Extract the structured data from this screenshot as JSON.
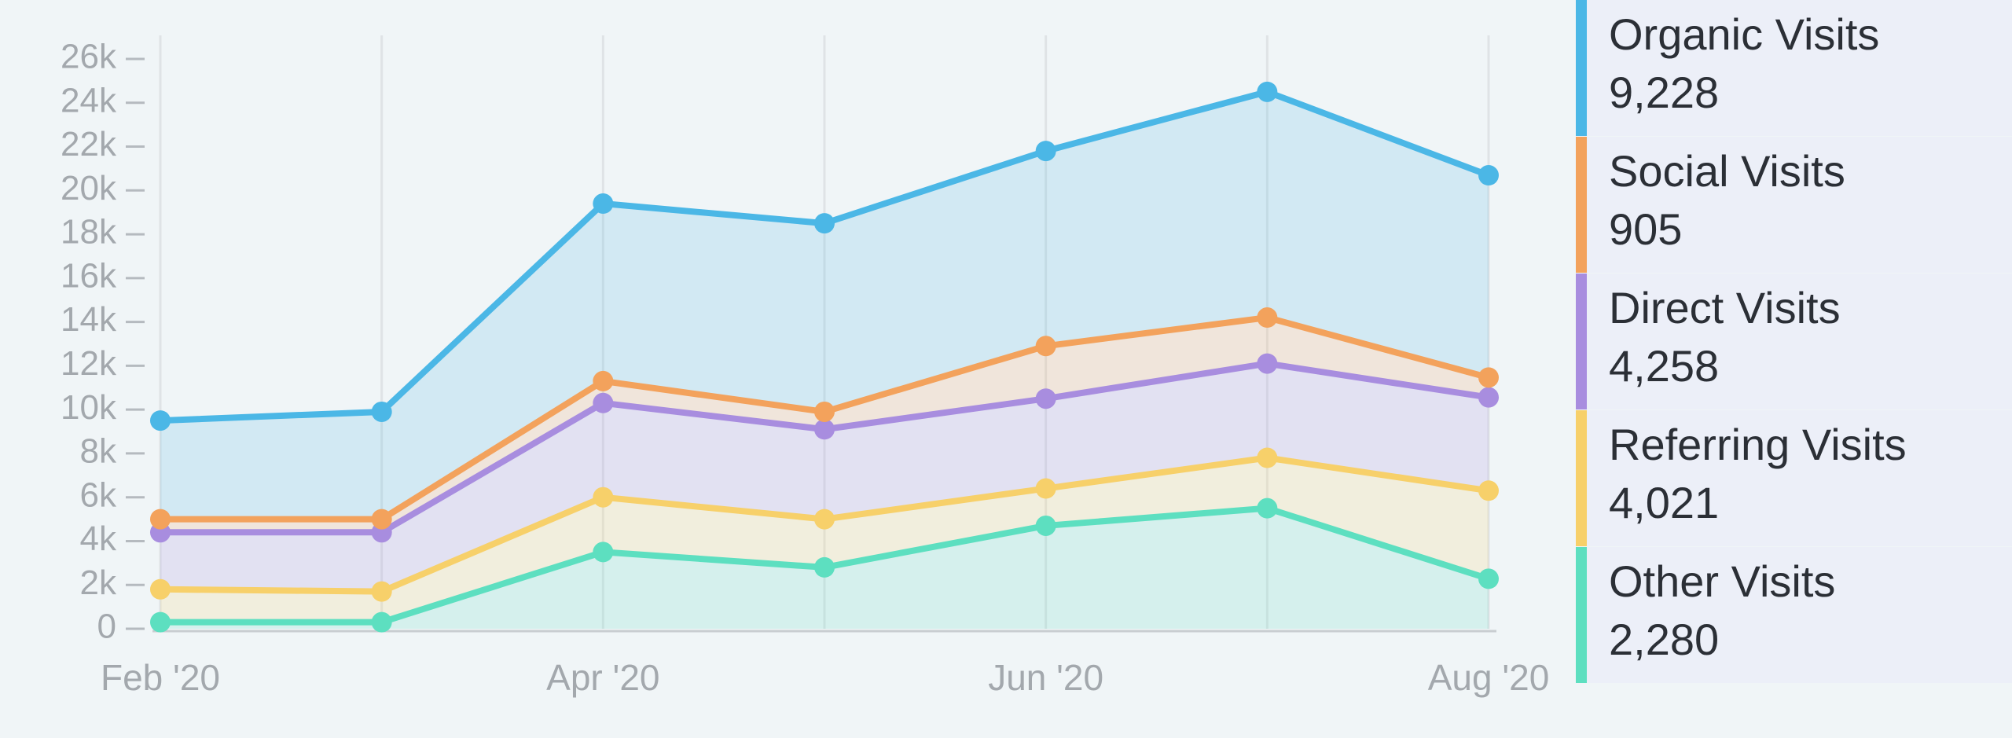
{
  "chart_data": {
    "type": "stacked_area",
    "categories": [
      "Feb '20",
      null,
      "Apr '20",
      null,
      "Jun '20",
      null,
      "Aug '20"
    ],
    "series": [
      {
        "name": "Organic Visits",
        "color": "#4bb7e6",
        "legend_value": "9,228",
        "values": [
          4500,
          4900,
          8100,
          8600,
          8900,
          10300,
          9228
        ]
      },
      {
        "name": "Social Visits",
        "color": "#f3a25c",
        "legend_value": "905",
        "values": [
          600,
          600,
          1000,
          800,
          2400,
          2100,
          905
        ]
      },
      {
        "name": "Direct Visits",
        "color": "#a88ddf",
        "legend_value": "4,258",
        "values": [
          2600,
          2700,
          4300,
          4100,
          4100,
          4300,
          4258
        ]
      },
      {
        "name": "Referring Visits",
        "color": "#f7d06a",
        "legend_value": "4,021",
        "values": [
          1500,
          1400,
          2500,
          2200,
          1700,
          2300,
          4021
        ]
      },
      {
        "name": "Other Visits",
        "color": "#5ddfc0",
        "legend_value": "2,280",
        "values": [
          300,
          300,
          3500,
          2800,
          4700,
          5500,
          2280
        ]
      }
    ],
    "ylim": [
      0,
      26000
    ],
    "yticks": [
      0,
      {
        "value": 2000,
        "label": "2k"
      },
      {
        "value": 4000,
        "label": "4k"
      },
      {
        "value": 6000,
        "label": "6k"
      },
      {
        "value": 8000,
        "label": "8k"
      },
      {
        "value": 10000,
        "label": "10k"
      },
      {
        "value": 12000,
        "label": "12k"
      },
      {
        "value": 14000,
        "label": "14k"
      },
      {
        "value": 16000,
        "label": "16k"
      },
      {
        "value": 18000,
        "label": "18k"
      },
      {
        "value": 20000,
        "label": "20k"
      },
      {
        "value": 22000,
        "label": "22k"
      },
      {
        "value": 24000,
        "label": "24k"
      },
      {
        "value": 26000,
        "label": "26k"
      }
    ],
    "grid": true
  }
}
